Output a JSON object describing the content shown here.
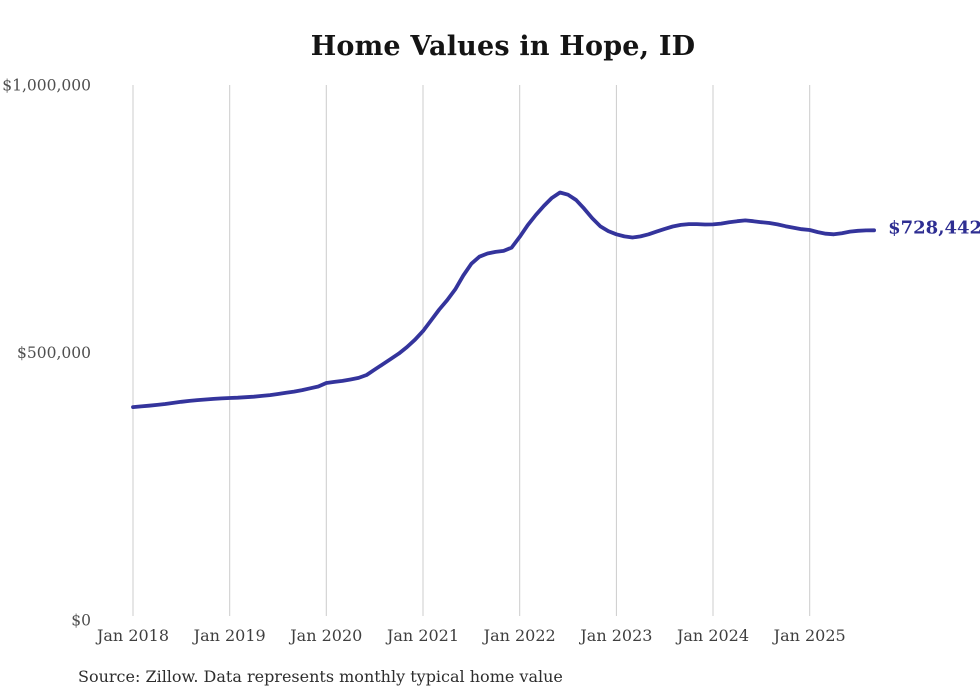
{
  "title": "Home Values in Hope, ID",
  "source_note": "Source: Zillow. Data represents monthly typical home value",
  "chart_data": {
    "type": "line",
    "title": "Home Values in Hope, ID",
    "series_name": "Monthly typical home value",
    "x_start": "Jan 2018",
    "x_end": "Sep 2025",
    "x_unit": "month",
    "x_tick_labels": [
      "Jan 2018",
      "Jan 2019",
      "Jan 2020",
      "Jan 2021",
      "Jan 2022",
      "Jan 2023",
      "Jan 2024",
      "Jan 2025"
    ],
    "x_tick_month_indices": [
      0,
      12,
      24,
      36,
      48,
      60,
      72,
      84
    ],
    "y_ticks": [
      {
        "value": 0,
        "label": "$0"
      },
      {
        "value": 500000,
        "label": "$500,000"
      },
      {
        "value": 1000000,
        "label": "$1,000,000"
      }
    ],
    "ylim": [
      0,
      1000000
    ],
    "grid": "vertical-only",
    "legend": "none",
    "line_color": "#34349c",
    "grid_color": "#cccccc",
    "end_label": "$728,442",
    "end_value": 728442,
    "values": [
      398000,
      399200,
      400500,
      402000,
      403800,
      405800,
      407800,
      409600,
      411000,
      412200,
      413200,
      414200,
      415000,
      415600,
      416400,
      417400,
      418800,
      420400,
      422400,
      424600,
      427000,
      429800,
      433000,
      436400,
      443000,
      445000,
      447000,
      449500,
      452500,
      458000,
      468000,
      478000,
      488000,
      498000,
      510000,
      524000,
      540000,
      560000,
      580000,
      598000,
      618000,
      644000,
      666000,
      679000,
      685000,
      688000,
      690000,
      696000,
      716000,
      738000,
      757000,
      774000,
      789000,
      799000,
      795000,
      785000,
      769000,
      751000,
      736000,
      727000,
      721000,
      717000,
      715000,
      717000,
      721000,
      726000,
      731000,
      735500,
      738500,
      740000,
      740000,
      739200,
      739500,
      741000,
      743500,
      745500,
      747000,
      745500,
      743500,
      742000,
      739500,
      736000,
      733000,
      730500,
      729000,
      725000,
      722000,
      721000,
      723000,
      726000,
      727500,
      728200,
      728442
    ]
  }
}
